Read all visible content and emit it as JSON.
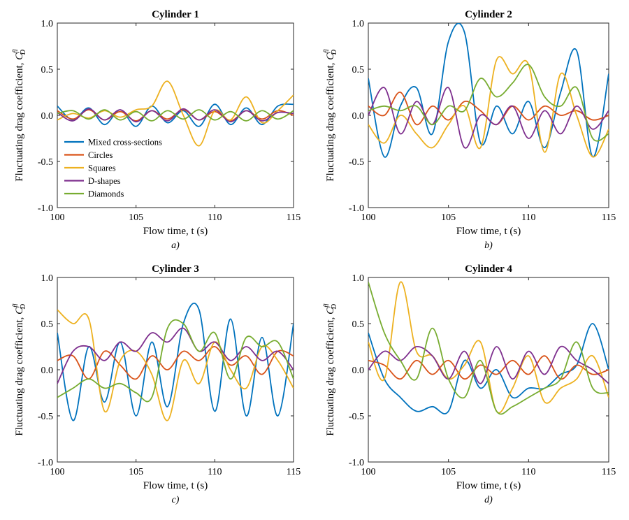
{
  "figure": {
    "xlabel": "Flow time, t (s)",
    "ylabel": "Fluctuating drag coefficient, ",
    "ylabel_symbol": "C",
    "ylabel_sup": "fl",
    "ylabel_sub": "D",
    "xlim": [
      100,
      115
    ],
    "ylim": [
      -1.0,
      1.0
    ],
    "xticks": [
      "100",
      "105",
      "110",
      "115"
    ],
    "yticks": [
      "1.0",
      "0.5",
      "0.0",
      "-0.5",
      "-1.0"
    ],
    "series": [
      {
        "name": "Mixed cross-sections",
        "color": "#0072BD"
      },
      {
        "name": "Circles",
        "color": "#D95319"
      },
      {
        "name": "Squares",
        "color": "#EDB120"
      },
      {
        "name": "D-shapes",
        "color": "#7E2F8E"
      },
      {
        "name": "Diamonds",
        "color": "#77AC30"
      }
    ]
  },
  "chart_data": [
    {
      "type": "line",
      "title": "Cylinder 1",
      "sublabel": "a)",
      "legend": "lower-left",
      "x": [
        100,
        101,
        102,
        103,
        104,
        105,
        106,
        107,
        108,
        109,
        110,
        111,
        112,
        113,
        114,
        115
      ],
      "series": [
        {
          "name": "Mixed cross-sections",
          "values": [
            0.1,
            -0.05,
            0.08,
            -0.1,
            0.06,
            -0.12,
            0.1,
            -0.08,
            0.05,
            -0.12,
            0.12,
            -0.1,
            0.08,
            -0.1,
            0.1,
            0.12
          ]
        },
        {
          "name": "Circles",
          "values": [
            0.05,
            -0.04,
            0.06,
            -0.05,
            0.04,
            -0.06,
            0.05,
            -0.04,
            0.06,
            -0.05,
            0.04,
            -0.06,
            0.05,
            -0.04,
            0.05,
            0.0
          ]
        },
        {
          "name": "Squares",
          "values": [
            -0.05,
            0.02,
            -0.03,
            0.05,
            -0.02,
            0.06,
            0.1,
            0.37,
            0.0,
            -0.33,
            0.05,
            -0.05,
            0.2,
            -0.08,
            0.05,
            0.22
          ]
        },
        {
          "name": "D-shapes",
          "values": [
            0.03,
            -0.06,
            0.07,
            -0.05,
            0.06,
            -0.07,
            0.05,
            -0.06,
            0.07,
            -0.05,
            0.06,
            -0.07,
            0.05,
            -0.06,
            0.03,
            0.02
          ]
        },
        {
          "name": "Diamonds",
          "values": [
            0.02,
            0.05,
            -0.04,
            0.06,
            -0.05,
            0.04,
            -0.06,
            0.05,
            -0.04,
            0.06,
            -0.05,
            0.04,
            -0.06,
            0.05,
            -0.04,
            0.05
          ]
        }
      ]
    },
    {
      "type": "line",
      "title": "Cylinder 2",
      "sublabel": "b)",
      "x": [
        100,
        101,
        102,
        103,
        104,
        105,
        106,
        107,
        108,
        109,
        110,
        111,
        112,
        113,
        114,
        115
      ],
      "series": [
        {
          "name": "Mixed cross-sections",
          "values": [
            0.4,
            -0.45,
            0.1,
            0.3,
            -0.2,
            0.8,
            0.9,
            -0.3,
            0.1,
            -0.2,
            0.15,
            -0.35,
            0.25,
            0.7,
            -0.45,
            0.45
          ]
        },
        {
          "name": "Circles",
          "values": [
            0.1,
            0.0,
            0.25,
            -0.1,
            0.1,
            -0.05,
            0.15,
            0.05,
            -0.1,
            0.1,
            -0.05,
            0.1,
            0.0,
            0.05,
            -0.05,
            0.0
          ]
        },
        {
          "name": "Squares",
          "values": [
            -0.1,
            -0.3,
            0.0,
            -0.2,
            -0.35,
            -0.1,
            0.1,
            -0.35,
            0.6,
            0.45,
            0.55,
            -0.4,
            0.45,
            0.0,
            -0.45,
            -0.15
          ]
        },
        {
          "name": "D-shapes",
          "values": [
            0.0,
            0.3,
            -0.2,
            0.15,
            -0.1,
            0.3,
            -0.35,
            0.0,
            -0.1,
            0.1,
            -0.25,
            0.05,
            -0.2,
            0.1,
            -0.15,
            0.05
          ]
        },
        {
          "name": "Diamonds",
          "values": [
            0.05,
            0.1,
            0.05,
            0.1,
            -0.1,
            0.1,
            0.05,
            0.4,
            0.2,
            0.35,
            0.55,
            0.2,
            0.1,
            0.3,
            -0.25,
            -0.2
          ]
        }
      ]
    },
    {
      "type": "line",
      "title": "Cylinder 3",
      "sublabel": "c)",
      "x": [
        100,
        101,
        102,
        103,
        104,
        105,
        106,
        107,
        108,
        109,
        110,
        111,
        112,
        113,
        114,
        115
      ],
      "series": [
        {
          "name": "Mixed cross-sections",
          "values": [
            0.4,
            -0.55,
            0.25,
            -0.35,
            0.3,
            -0.5,
            0.3,
            -0.4,
            0.5,
            0.65,
            -0.45,
            0.55,
            -0.5,
            0.35,
            -0.5,
            0.5
          ]
        },
        {
          "name": "Circles",
          "values": [
            0.1,
            0.15,
            -0.1,
            0.2,
            0.05,
            -0.1,
            0.15,
            0.0,
            0.2,
            0.1,
            0.25,
            0.05,
            0.15,
            -0.05,
            0.2,
            0.15
          ]
        },
        {
          "name": "Squares",
          "values": [
            0.65,
            0.5,
            0.55,
            -0.45,
            0.1,
            0.2,
            -0.05,
            -0.55,
            0.1,
            -0.15,
            0.3,
            0.0,
            -0.2,
            0.25,
            0.1,
            -0.2
          ]
        },
        {
          "name": "D-shapes",
          "values": [
            -0.15,
            0.2,
            0.25,
            0.1,
            0.3,
            0.2,
            0.4,
            0.3,
            0.45,
            0.2,
            0.3,
            0.1,
            0.25,
            0.1,
            0.2,
            0.0
          ]
        },
        {
          "name": "Diamonds",
          "values": [
            -0.3,
            -0.2,
            -0.1,
            -0.2,
            -0.15,
            -0.25,
            -0.3,
            0.45,
            0.5,
            0.2,
            0.4,
            -0.1,
            0.35,
            0.25,
            0.3,
            -0.1
          ]
        }
      ]
    },
    {
      "type": "line",
      "title": "Cylinder 4",
      "sublabel": "d)",
      "x": [
        100,
        101,
        102,
        103,
        104,
        105,
        106,
        107,
        108,
        109,
        110,
        111,
        112,
        113,
        114,
        115
      ],
      "series": [
        {
          "name": "Mixed cross-sections",
          "values": [
            0.4,
            -0.1,
            -0.3,
            -0.45,
            -0.4,
            -0.45,
            0.1,
            -0.2,
            0.0,
            -0.3,
            -0.2,
            -0.2,
            -0.05,
            0.05,
            0.5,
            0.0
          ]
        },
        {
          "name": "Circles",
          "values": [
            0.1,
            0.05,
            -0.1,
            0.1,
            -0.05,
            0.1,
            -0.1,
            0.05,
            -0.05,
            0.1,
            -0.05,
            0.15,
            -0.1,
            0.05,
            -0.05,
            0.0
          ]
        },
        {
          "name": "Squares",
          "values": [
            0.3,
            -0.1,
            0.95,
            0.2,
            0.15,
            -0.1,
            0.05,
            0.3,
            -0.45,
            -0.2,
            0.15,
            -0.35,
            -0.2,
            -0.1,
            0.15,
            -0.3
          ]
        },
        {
          "name": "D-shapes",
          "values": [
            0.0,
            0.2,
            0.1,
            0.25,
            0.15,
            -0.1,
            0.2,
            -0.15,
            0.25,
            -0.1,
            0.2,
            -0.05,
            0.25,
            0.1,
            0.0,
            -0.15
          ]
        },
        {
          "name": "Diamonds",
          "values": [
            0.95,
            0.4,
            0.1,
            -0.1,
            0.45,
            -0.1,
            -0.3,
            0.1,
            -0.45,
            -0.4,
            -0.3,
            -0.2,
            -0.1,
            0.3,
            -0.2,
            -0.25
          ]
        }
      ]
    }
  ]
}
